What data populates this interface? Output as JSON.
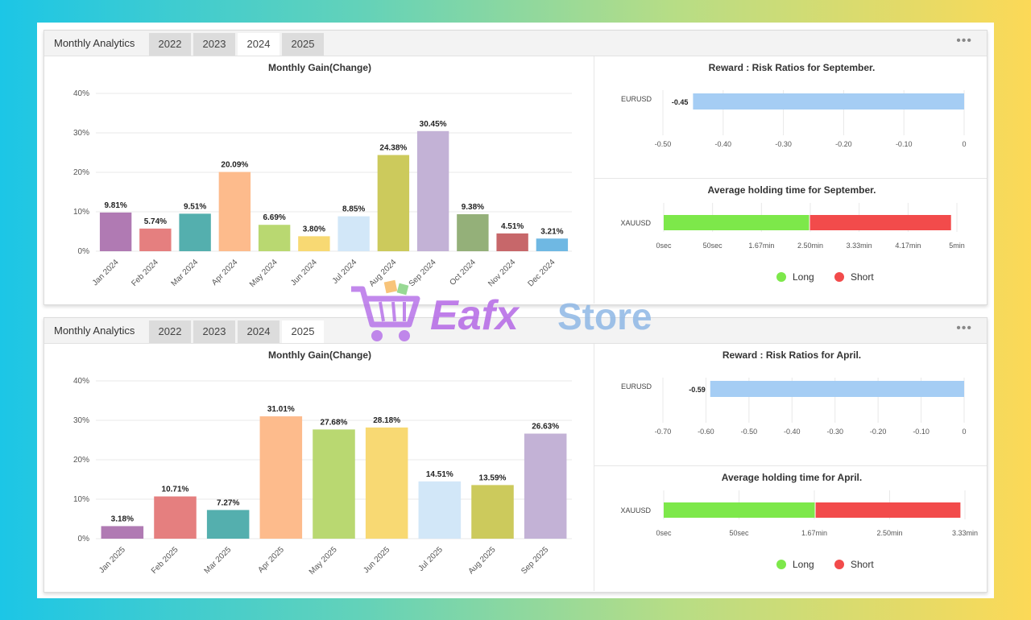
{
  "panels": [
    {
      "title": "Monthly Analytics",
      "tabs": [
        "2022",
        "2023",
        "2024",
        "2025"
      ],
      "active_tab": 2,
      "menu": "•••",
      "gain_chart": {
        "type": "bar",
        "title": "Monthly Gain(Change)",
        "categories": [
          "Jan 2024",
          "Feb 2024",
          "Mar 2024",
          "Apr 2024",
          "May 2024",
          "Jun 2024",
          "Jul 2024",
          "Aug 2024",
          "Sep 2024",
          "Oct 2024",
          "Nov 2024",
          "Dec 2024"
        ],
        "values": [
          9.81,
          5.74,
          9.51,
          20.09,
          6.69,
          3.8,
          8.85,
          24.38,
          30.45,
          9.38,
          4.51,
          3.21
        ],
        "labels": [
          "9.81%",
          "5.74%",
          "9.51%",
          "20.09%",
          "6.69%",
          "3.80%",
          "8.85%",
          "24.38%",
          "30.45%",
          "9.38%",
          "4.51%",
          "3.21%"
        ],
        "colors": [
          "#b07ab3",
          "#e57f7f",
          "#54afae",
          "#fdbb8c",
          "#b9d871",
          "#f8d973",
          "#d2e7f8",
          "#ccca5c",
          "#c3b2d6",
          "#94b079",
          "#c7676a",
          "#6fb8e3"
        ],
        "yticks": [
          "0%",
          "10%",
          "20%",
          "30%",
          "40%"
        ],
        "ylim": [
          0,
          40
        ]
      },
      "rr_chart": {
        "type": "bar",
        "title": "Reward : Risk Ratios for September.",
        "category": "EURUSD",
        "value": -0.45,
        "value_label": "-0.45",
        "color": "#a5cdf4",
        "xticks": [
          "-0.50",
          "-0.40",
          "-0.30",
          "-0.20",
          "-0.10",
          "0"
        ],
        "xlim": [
          -0.5,
          0
        ]
      },
      "hold_chart": {
        "type": "bar",
        "title": "Average holding time for September.",
        "category": "XAUUSD",
        "long_minutes": 2.48,
        "total_minutes": 4.9,
        "xticks": [
          "0sec",
          "50sec",
          "1.67min",
          "2.50min",
          "3.33min",
          "4.17min",
          "5min"
        ],
        "xlim_minutes": [
          0,
          5
        ],
        "legend": [
          {
            "name": "Long",
            "color": "#7de84a"
          },
          {
            "name": "Short",
            "color": "#f24b4b"
          }
        ]
      }
    },
    {
      "title": "Monthly Analytics",
      "tabs": [
        "2022",
        "2023",
        "2024",
        "2025"
      ],
      "active_tab": 3,
      "menu": "•••",
      "gain_chart": {
        "type": "bar",
        "title": "Monthly Gain(Change)",
        "categories": [
          "Jan 2025",
          "Feb 2025",
          "Mar 2025",
          "Apr 2025",
          "May 2025",
          "Jun 2025",
          "Jul 2025",
          "Aug 2025",
          "Sep 2025"
        ],
        "values": [
          3.18,
          10.71,
          7.27,
          31.01,
          27.68,
          28.18,
          14.51,
          13.59,
          26.63
        ],
        "labels": [
          "3.18%",
          "10.71%",
          "7.27%",
          "31.01%",
          "27.68%",
          "28.18%",
          "14.51%",
          "13.59%",
          "26.63%"
        ],
        "colors": [
          "#b07ab3",
          "#e57f7f",
          "#54afae",
          "#fdbb8c",
          "#b9d871",
          "#f8d973",
          "#d2e7f8",
          "#ccca5c",
          "#c3b2d6"
        ],
        "yticks": [
          "0%",
          "10%",
          "20%",
          "30%",
          "40%"
        ],
        "ylim": [
          0,
          40
        ]
      },
      "rr_chart": {
        "type": "bar",
        "title": "Reward : Risk Ratios for April.",
        "category": "EURUSD",
        "value": -0.59,
        "value_label": "-0.59",
        "color": "#a5cdf4",
        "xticks": [
          "-0.70",
          "-0.60",
          "-0.50",
          "-0.40",
          "-0.30",
          "-0.20",
          "-0.10",
          "0"
        ],
        "xlim": [
          -0.7,
          0
        ]
      },
      "hold_chart": {
        "type": "bar",
        "title": "Average holding time for April.",
        "category": "XAUUSD",
        "long_minutes": 1.67,
        "total_minutes": 3.28,
        "xticks": [
          "0sec",
          "50sec",
          "1.67min",
          "2.50min",
          "3.33min"
        ],
        "xlim_minutes": [
          0,
          3.33
        ],
        "legend": [
          {
            "name": "Long",
            "color": "#7de84a"
          },
          {
            "name": "Short",
            "color": "#f24b4b"
          }
        ]
      }
    }
  ],
  "watermark": {
    "word1": "Eafx",
    "word2": "Store"
  }
}
